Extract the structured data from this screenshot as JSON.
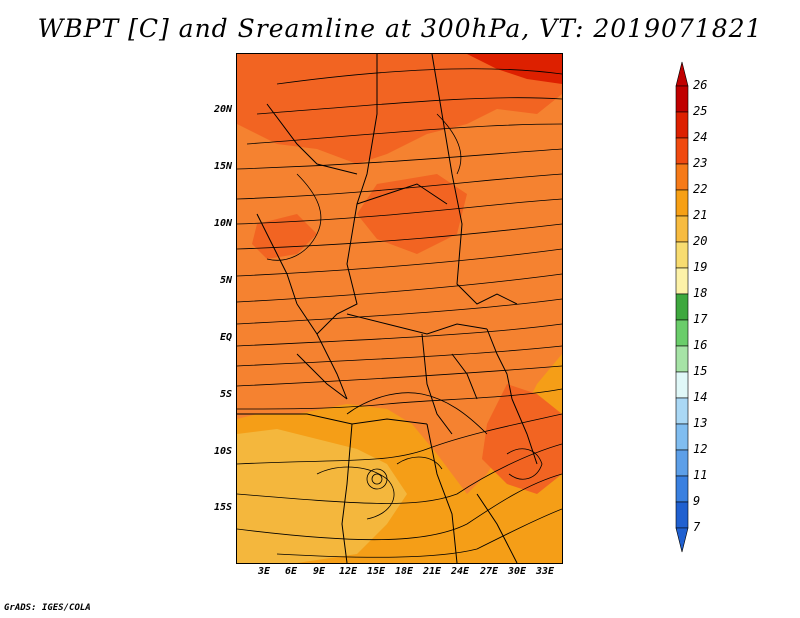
{
  "title": "WBPT [C] and Sreamline at 300hPa, VT: 2019071821",
  "credit": "GrADS: IGES/COLA",
  "lat_labels": [
    "20N",
    "15N",
    "10N",
    "5N",
    "EQ",
    "5S",
    "10S",
    "15S"
  ],
  "lon_labels": [
    "3E",
    "6E",
    "9E",
    "12E",
    "15E",
    "18E",
    "21E",
    "24E",
    "27E",
    "30E",
    "33E"
  ],
  "colorbar": {
    "labels": [
      "26",
      "25",
      "24",
      "23",
      "22",
      "21",
      "20",
      "19",
      "18",
      "17",
      "16",
      "15",
      "14",
      "13",
      "12",
      "11",
      "9",
      "7"
    ],
    "colors": [
      "#c00000",
      "#dd2000",
      "#f04a10",
      "#f67a18",
      "#f7a015",
      "#f7bb40",
      "#f8dc70",
      "#fdf2a8",
      "#3ea83e",
      "#6acd6a",
      "#a6e3a6",
      "#e0f8f8",
      "#aad8f5",
      "#80bdf0",
      "#5d9fe8",
      "#3a80e0",
      "#2060d0"
    ]
  },
  "map": {
    "field_colors": {
      "warm_24": "#f26422",
      "mid_23": "#f58230",
      "base_22": "#f59e17",
      "cool_21": "#f4b73d"
    },
    "streamline_color": "#000000",
    "border_color": "#000000"
  }
}
